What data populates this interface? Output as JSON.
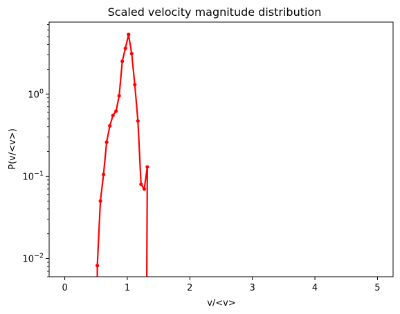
{
  "chart_data": {
    "type": "line",
    "title": "Scaled velocity magnitude distribution",
    "xlabel": "v/<v>",
    "ylabel": "P(v/<v>)",
    "xlim": [
      -0.25,
      5.25
    ],
    "ylim": [
      0.006,
      7.5
    ],
    "yscale": "log",
    "grid": false,
    "x_ticks": [
      0,
      1,
      2,
      3,
      4,
      5
    ],
    "x_tick_labels": [
      "0",
      "1",
      "2",
      "3",
      "4",
      "5"
    ],
    "y_ticks": [
      0.01,
      0.1,
      1
    ],
    "y_tick_labels": [
      "10",
      "10",
      "10"
    ],
    "y_tick_exponents": [
      "−2",
      "−1",
      "0"
    ],
    "series": [
      {
        "color": "#ff0000",
        "x": [
          0.52,
          0.57,
          0.62,
          0.67,
          0.72,
          0.77,
          0.82,
          0.87,
          0.92,
          0.97,
          1.02,
          1.07,
          1.12,
          1.17,
          1.22,
          1.27,
          1.32
        ],
        "y": [
          0.0082,
          0.05,
          0.105,
          0.26,
          0.41,
          0.55,
          0.62,
          0.95,
          2.5,
          3.6,
          5.3,
          3.1,
          1.3,
          0.47,
          0.08,
          0.07,
          0.13
        ],
        "drop_x": 1.31
      }
    ]
  }
}
